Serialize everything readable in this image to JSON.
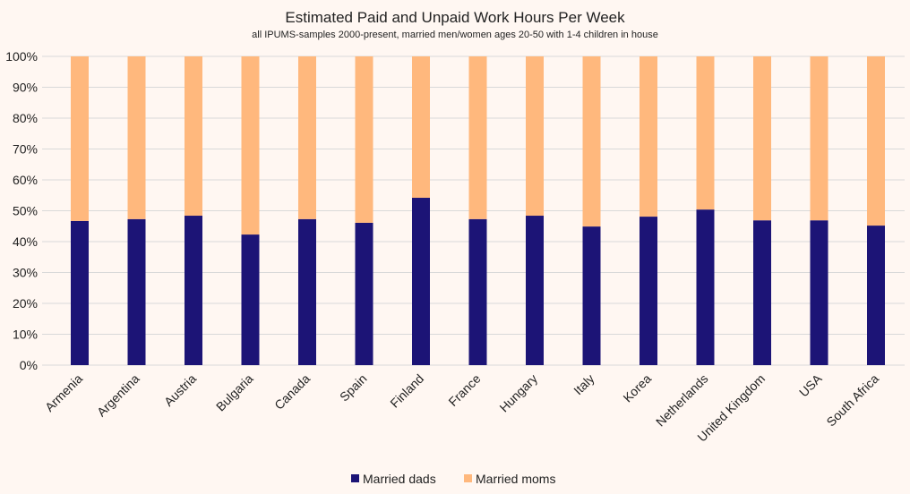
{
  "chart_data": {
    "type": "bar",
    "stacked": true,
    "normalized": true,
    "title": "Estimated Paid and Unpaid Work Hours Per Week",
    "subtitle": "all IPUMS-samples 2000-present, married men/women ages 20-50 with 1-4 children in house",
    "xlabel": "",
    "ylabel": "",
    "ylim": [
      0,
      100
    ],
    "yticks": [
      "0%",
      "10%",
      "20%",
      "30%",
      "40%",
      "50%",
      "60%",
      "70%",
      "80%",
      "90%",
      "100%"
    ],
    "grid": true,
    "legend_position": "bottom",
    "categories": [
      "Armenia",
      "Argentina",
      "Austria",
      "Bulgaria",
      "Canada",
      "Spain",
      "Finland",
      "France",
      "Hungary",
      "Italy",
      "Korea",
      "Netherlands",
      "United Kingdom",
      "USA",
      "South Africa"
    ],
    "series": [
      {
        "name": "Married dads",
        "color": "#1c1476",
        "values": [
          46.7,
          47.3,
          48.4,
          42.3,
          47.3,
          46.1,
          54.2,
          47.3,
          48.4,
          44.9,
          48.1,
          50.4,
          46.9,
          46.9,
          45.2
        ]
      },
      {
        "name": "Married moms",
        "color": "#ffb87d",
        "values": [
          53.3,
          52.7,
          51.6,
          57.7,
          52.7,
          53.9,
          45.8,
          52.7,
          51.6,
          55.1,
          51.9,
          49.6,
          53.1,
          53.1,
          54.8
        ]
      }
    ]
  }
}
